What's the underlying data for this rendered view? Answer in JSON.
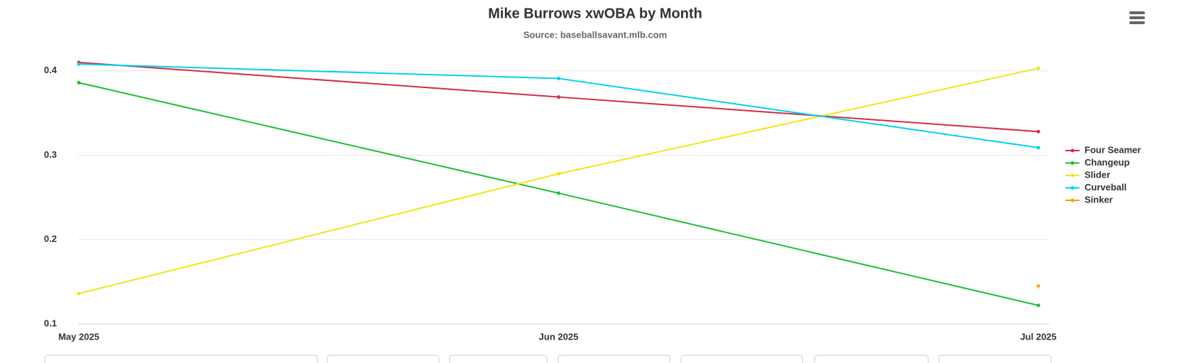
{
  "chart_data": {
    "type": "line",
    "title": "Mike Burrows xwOBA by Month",
    "subtitle": "Source: baseballsavant.mlb.com",
    "categories": [
      "May 2025",
      "Jun 2025",
      "Jul 2025"
    ],
    "series": [
      {
        "name": "Four Seamer",
        "color": "#d22d49",
        "values": [
          0.41,
          0.369,
          0.328
        ]
      },
      {
        "name": "Changeup",
        "color": "#1dbe3a",
        "values": [
          0.386,
          0.255,
          0.122
        ]
      },
      {
        "name": "Slider",
        "color": "#eee716",
        "values": [
          0.136,
          0.278,
          0.403
        ]
      },
      {
        "name": "Curveball",
        "color": "#00d1ed",
        "values": [
          0.408,
          0.391,
          0.309
        ]
      },
      {
        "name": "Sinker",
        "color": "#fe9d00",
        "values": [
          null,
          null,
          0.144
        ]
      }
    ],
    "ylim": [
      0.1,
      0.42
    ],
    "yticks": [
      0.1,
      0.2,
      0.3,
      0.4
    ],
    "grid": true,
    "legend": "right"
  }
}
